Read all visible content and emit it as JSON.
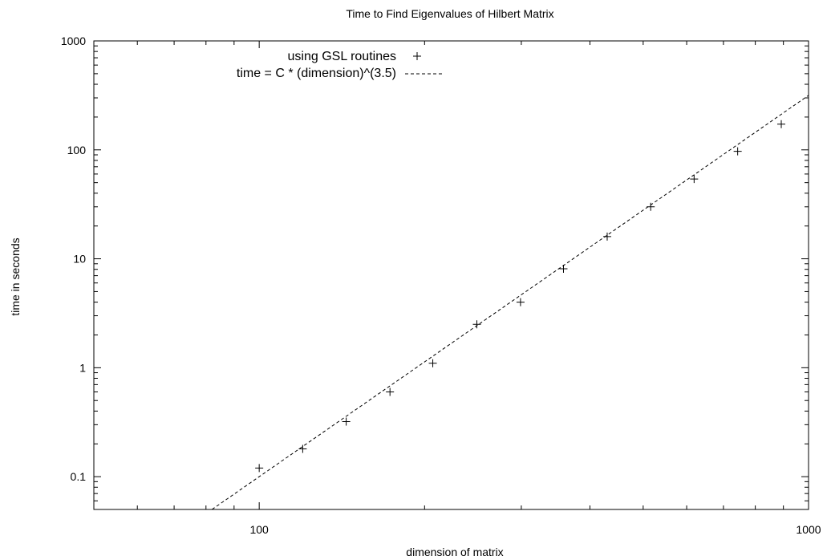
{
  "chart_data": {
    "type": "scatter",
    "title": "Time to Find Eigenvalues of Hilbert Matrix",
    "xlabel": "dimension of matrix",
    "ylabel": "time in seconds",
    "xscale": "log",
    "yscale": "log",
    "xlim": [
      50,
      1000
    ],
    "ylim": [
      0.05,
      1000
    ],
    "x_ticks": [
      {
        "value": 100,
        "label": "100"
      },
      {
        "value": 1000,
        "label": "1000"
      }
    ],
    "y_ticks": [
      {
        "value": 0.1,
        "label": "0.1"
      },
      {
        "value": 1,
        "label": "1"
      },
      {
        "value": 10,
        "label": "10"
      },
      {
        "value": 100,
        "label": "100"
      },
      {
        "value": 1000,
        "label": "1000"
      }
    ],
    "grid": false,
    "legend_position": "top-left",
    "series": [
      {
        "name": "using GSL routines",
        "style": "points",
        "marker": "plus",
        "x": [
          100,
          120,
          144,
          173,
          207,
          249,
          299,
          358,
          430,
          516,
          619,
          743,
          892
        ],
        "y": [
          0.12,
          0.18,
          0.32,
          0.6,
          1.1,
          2.5,
          4.0,
          8.1,
          16,
          30,
          54,
          97,
          172
        ]
      },
      {
        "name": "time = C * (dimension)^(3.5)",
        "style": "dashed-line",
        "constant": 1e-08,
        "exponent": 3.5
      }
    ]
  }
}
